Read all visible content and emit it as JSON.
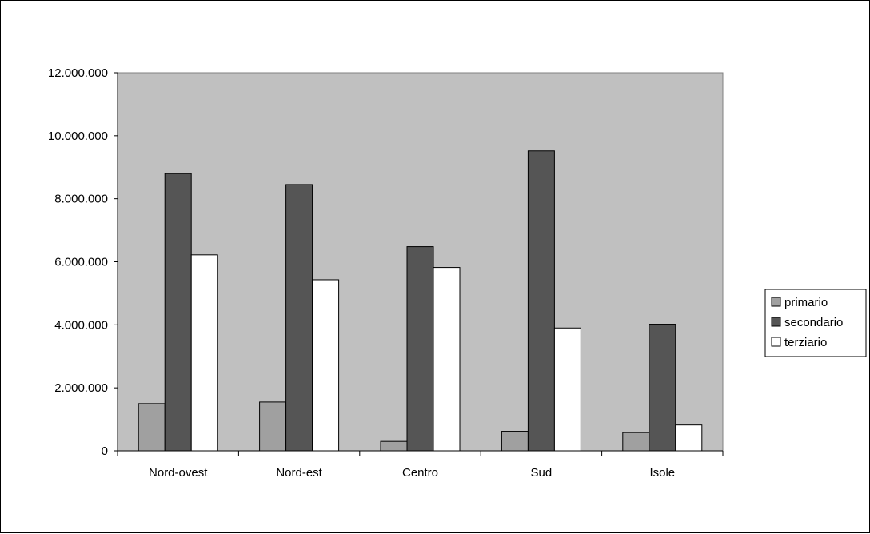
{
  "chart_data": {
    "type": "bar",
    "categories": [
      "Nord-ovest",
      "Nord-est",
      "Centro",
      "Sud",
      "Isole"
    ],
    "series": [
      {
        "name": "primario",
        "values": [
          1500000,
          1550000,
          300000,
          620000,
          580000
        ]
      },
      {
        "name": "secondario",
        "values": [
          8800000,
          8450000,
          6480000,
          9520000,
          4020000
        ]
      },
      {
        "name": "terziario",
        "values": [
          6220000,
          5430000,
          5820000,
          3900000,
          820000
        ]
      }
    ],
    "ylim": [
      0,
      12000000
    ],
    "yticks": [
      0,
      2000000,
      4000000,
      6000000,
      8000000,
      10000000,
      12000000
    ],
    "ytick_labels": [
      "0",
      "2.000.000",
      "4.000.000",
      "6.000.000",
      "8.000.000",
      "10.000.000",
      "12.000.000"
    ],
    "grid": false,
    "legend_position": "right",
    "colors": {
      "plot_background": "#c0c0c0",
      "primario": "#a0a0a0",
      "secondario": "#555555",
      "terziario": "#ffffff"
    }
  }
}
